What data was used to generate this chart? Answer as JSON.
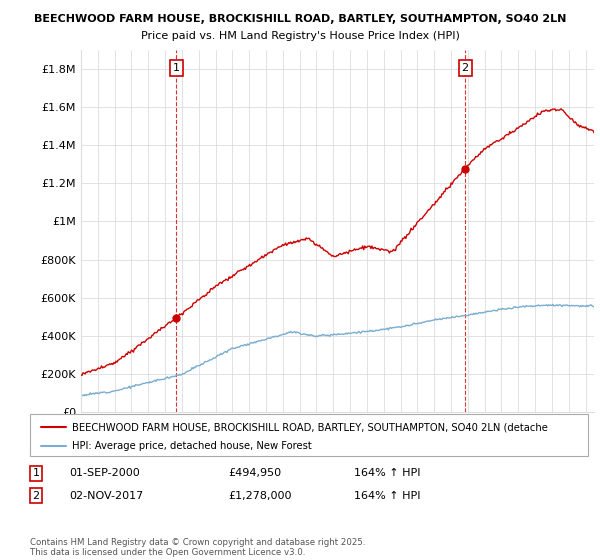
{
  "title1": "BEECHWOOD FARM HOUSE, BROCKISHILL ROAD, BARTLEY, SOUTHAMPTON, SO40 2LN",
  "title2": "Price paid vs. HM Land Registry's House Price Index (HPI)",
  "ylim": [
    0,
    1900000
  ],
  "yticks": [
    0,
    200000,
    400000,
    600000,
    800000,
    1000000,
    1200000,
    1400000,
    1600000,
    1800000
  ],
  "ytick_labels": [
    "£0",
    "£200K",
    "£400K",
    "£600K",
    "£800K",
    "£1M",
    "£1.2M",
    "£1.4M",
    "£1.6M",
    "£1.8M"
  ],
  "xlim": [
    1995,
    2025.5
  ],
  "sale1_date": 2000.67,
  "sale1_price": 494950,
  "sale2_date": 2017.84,
  "sale2_price": 1278000,
  "legend_line1": "BEECHWOOD FARM HOUSE, BROCKISHILL ROAD, BARTLEY, SOUTHAMPTON, SO40 2LN (detache",
  "legend_line2": "HPI: Average price, detached house, New Forest",
  "footer": "Contains HM Land Registry data © Crown copyright and database right 2025.\nThis data is licensed under the Open Government Licence v3.0.",
  "line_color_red": "#cc0000",
  "line_color_blue": "#7aadcf",
  "grid_color": "#dddddd",
  "background": "#ffffff",
  "title1_fontsize": 8.0,
  "title2_fontsize": 8.0
}
